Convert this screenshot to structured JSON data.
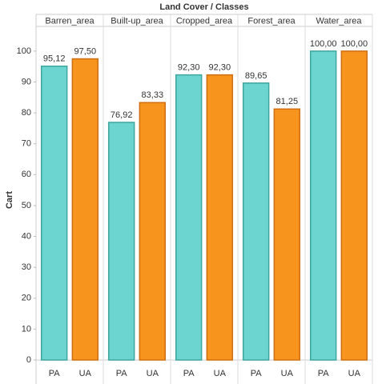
{
  "chart_data": {
    "type": "bar",
    "title": "Land Cover / Classes",
    "ylabel": "Cart",
    "categories": [
      "PA",
      "UA"
    ],
    "colors": [
      "#6dd5cf",
      "#f7941d"
    ],
    "panels": [
      {
        "name": "Barren_area",
        "values": [
          95.12,
          97.5
        ],
        "value_labels": [
          "95,12",
          "97,50"
        ]
      },
      {
        "name": "Built-up_area",
        "values": [
          76.92,
          83.33
        ],
        "value_labels": [
          "76,92",
          "83,33"
        ]
      },
      {
        "name": "Cropped_area",
        "values": [
          92.3,
          92.3
        ],
        "value_labels": [
          "92,30",
          "92,30"
        ]
      },
      {
        "name": "Forest_area",
        "values": [
          89.65,
          81.25
        ],
        "value_labels": [
          "89,65",
          "81,25"
        ]
      },
      {
        "name": "Water_area",
        "values": [
          100,
          100
        ],
        "value_labels": [
          "100,00",
          "100,00"
        ]
      }
    ],
    "ylim": [
      0,
      108
    ],
    "yticks": [
      0,
      10,
      20,
      30,
      40,
      50,
      60,
      70,
      80,
      90,
      100
    ]
  }
}
